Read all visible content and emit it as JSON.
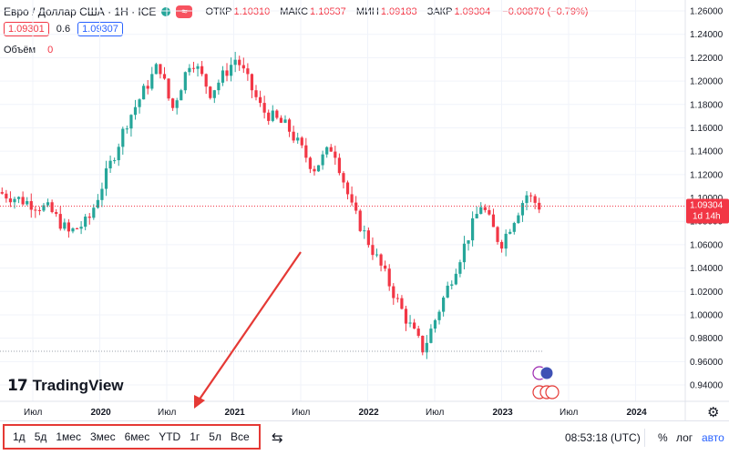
{
  "header": {
    "symbol": "Евро / Доллар США · 1Н · ICE",
    "ohlc": [
      {
        "label": "ОТКР",
        "value": "1.10310"
      },
      {
        "label": "МАКС",
        "value": "1.10537"
      },
      {
        "label": "МИН",
        "value": "1.09183"
      },
      {
        "label": "ЗАКР",
        "value": "1.09304"
      },
      {
        "label": "",
        "value": "−0.00870 (−0.79%)"
      }
    ],
    "bid": "1.09301",
    "spread": "0.6",
    "ask": "1.09307",
    "volume_label": "Объём",
    "volume_value": "0"
  },
  "colors": {
    "up": "#26a69a",
    "down": "#f23645",
    "accent": "#2962ff",
    "arrow": "#e53935"
  },
  "chart_data": {
    "type": "candlestick",
    "y_ticks": [
      "1.26000",
      "1.24000",
      "1.22000",
      "1.20000",
      "1.18000",
      "1.16000",
      "1.14000",
      "1.12000",
      "1.10000",
      "1.08000",
      "1.06000",
      "1.04000",
      "1.02000",
      "1.00000",
      "0.98000",
      "0.96000",
      "0.94000"
    ],
    "y_range": [
      0.93,
      1.265
    ],
    "x_labels": [
      {
        "text": "Июл",
        "bold": false
      },
      {
        "text": "2020",
        "bold": true
      },
      {
        "text": "Июл",
        "bold": false
      },
      {
        "text": "2021",
        "bold": true
      },
      {
        "text": "Июл",
        "bold": false
      },
      {
        "text": "2022",
        "bold": true
      },
      {
        "text": "Июл",
        "bold": false
      },
      {
        "text": "2023",
        "bold": true
      },
      {
        "text": "Июл",
        "bold": false
      },
      {
        "text": "2024",
        "bold": true
      }
    ],
    "last_price": "1.09304",
    "countdown": "1d 14h",
    "key_points": [
      {
        "t": 0,
        "v": 1.105
      },
      {
        "t": 0.08,
        "v": 1.09
      },
      {
        "t": 0.11,
        "v": 1.07
      },
      {
        "t": 0.14,
        "v": 1.08
      },
      {
        "t": 0.2,
        "v": 1.165
      },
      {
        "t": 0.25,
        "v": 1.215
      },
      {
        "t": 0.27,
        "v": 1.175
      },
      {
        "t": 0.3,
        "v": 1.22
      },
      {
        "t": 0.33,
        "v": 1.19
      },
      {
        "t": 0.37,
        "v": 1.22
      },
      {
        "t": 0.41,
        "v": 1.175
      },
      {
        "t": 0.45,
        "v": 1.16
      },
      {
        "t": 0.49,
        "v": 1.125
      },
      {
        "t": 0.52,
        "v": 1.145
      },
      {
        "t": 0.55,
        "v": 1.09
      },
      {
        "t": 0.6,
        "v": 1.035
      },
      {
        "t": 0.63,
        "v": 1.0
      },
      {
        "t": 0.66,
        "v": 0.97
      },
      {
        "t": 0.71,
        "v": 1.04
      },
      {
        "t": 0.75,
        "v": 1.095
      },
      {
        "t": 0.78,
        "v": 1.06
      },
      {
        "t": 0.82,
        "v": 1.103
      },
      {
        "t": 0.84,
        "v": 1.093
      }
    ]
  },
  "bottom_bar": {
    "ranges": [
      "1д",
      "5д",
      "1мес",
      "3мес",
      "6мес",
      "YTD",
      "1г",
      "5л",
      "Все"
    ],
    "time": "08:53:18 (UTC)",
    "percent_label": "%",
    "log_label": "лог",
    "auto_label": "авто"
  },
  "logo": {
    "text": "TradingView"
  },
  "icons": {
    "settings": "gear-icon",
    "compare": "compare-icon",
    "logo_mark": "tv-logo-icon"
  }
}
